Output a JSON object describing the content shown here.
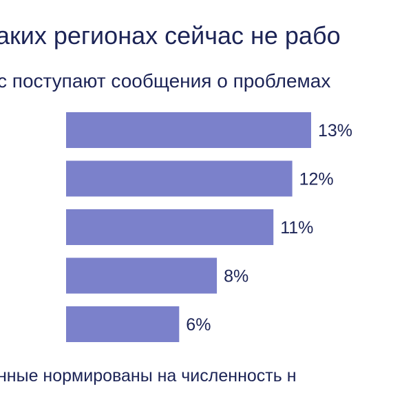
{
  "chart_data": {
    "type": "bar",
    "orientation": "horizontal",
    "title": "аких регионах сейчас не рабо",
    "subtitle": "с поступают сообщения о проблемах",
    "footnote": "нные нормированы на численность н",
    "values": [
      13,
      12,
      11,
      8,
      6
    ],
    "data_labels": [
      "13%",
      "12%",
      "11%",
      "8%",
      "6%"
    ],
    "xlim": [
      0,
      13
    ],
    "grid": false,
    "legend": "none",
    "bar_color": "#7b81cb",
    "text_color": "#1c2456"
  }
}
